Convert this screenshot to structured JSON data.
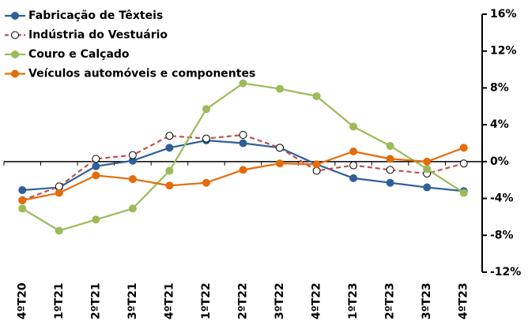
{
  "chart_data": {
    "type": "line",
    "categories": [
      "4ºT20",
      "1ºT21",
      "2ºT21",
      "3ºT21",
      "4ºT21",
      "1ºT22",
      "2ºT22",
      "3ºT22",
      "4ºT22",
      "1ºT23",
      "2ºT23",
      "3ºT23",
      "4ºT23"
    ],
    "series": [
      {
        "name": "Fabricação de Têxteis",
        "color": "#2e5f98",
        "dashed": false,
        "marker_fill": "#2e5f98",
        "values": [
          -3.1,
          -2.8,
          -0.5,
          0.1,
          1.5,
          2.3,
          2.0,
          1.5,
          -0.3,
          -1.8,
          -2.3,
          -2.8,
          -3.2
        ]
      },
      {
        "name": "Indústria do Vestuário",
        "color": "#c0504d",
        "dashed": true,
        "marker_fill": "#ffffff",
        "values": [
          -4.2,
          -2.7,
          0.3,
          0.7,
          2.8,
          2.5,
          2.9,
          1.5,
          -1.0,
          -0.4,
          -0.9,
          -1.3,
          -0.2
        ]
      },
      {
        "name": "Couro e Calçado",
        "color": "#9bbb59",
        "dashed": false,
        "marker_fill": "#9bbb59",
        "values": [
          -5.1,
          -7.5,
          -6.3,
          -5.1,
          -1.0,
          5.7,
          8.5,
          7.9,
          7.1,
          3.8,
          1.7,
          -0.8,
          -3.4
        ]
      },
      {
        "name": "Veículos automóveis e componentes",
        "color": "#e46c0a",
        "dashed": false,
        "marker_fill": "#e46c0a",
        "values": [
          -4.2,
          -3.4,
          -1.5,
          -1.9,
          -2.6,
          -2.3,
          -0.9,
          -0.2,
          -0.3,
          1.1,
          0.3,
          0.0,
          1.5
        ]
      }
    ],
    "ylim": [
      -12,
      16
    ],
    "yticks": [
      {
        "value": -12,
        "label": "-12%"
      },
      {
        "value": -8,
        "label": "-8%"
      },
      {
        "value": -4,
        "label": "-4%"
      },
      {
        "value": 0,
        "label": "0%"
      },
      {
        "value": 4,
        "label": "4%"
      },
      {
        "value": 8,
        "label": "8%"
      },
      {
        "value": 12,
        "label": "12%"
      },
      {
        "value": 16,
        "label": "16%"
      }
    ],
    "y_axis_side": "right",
    "grid": false,
    "legend": "top-left"
  }
}
